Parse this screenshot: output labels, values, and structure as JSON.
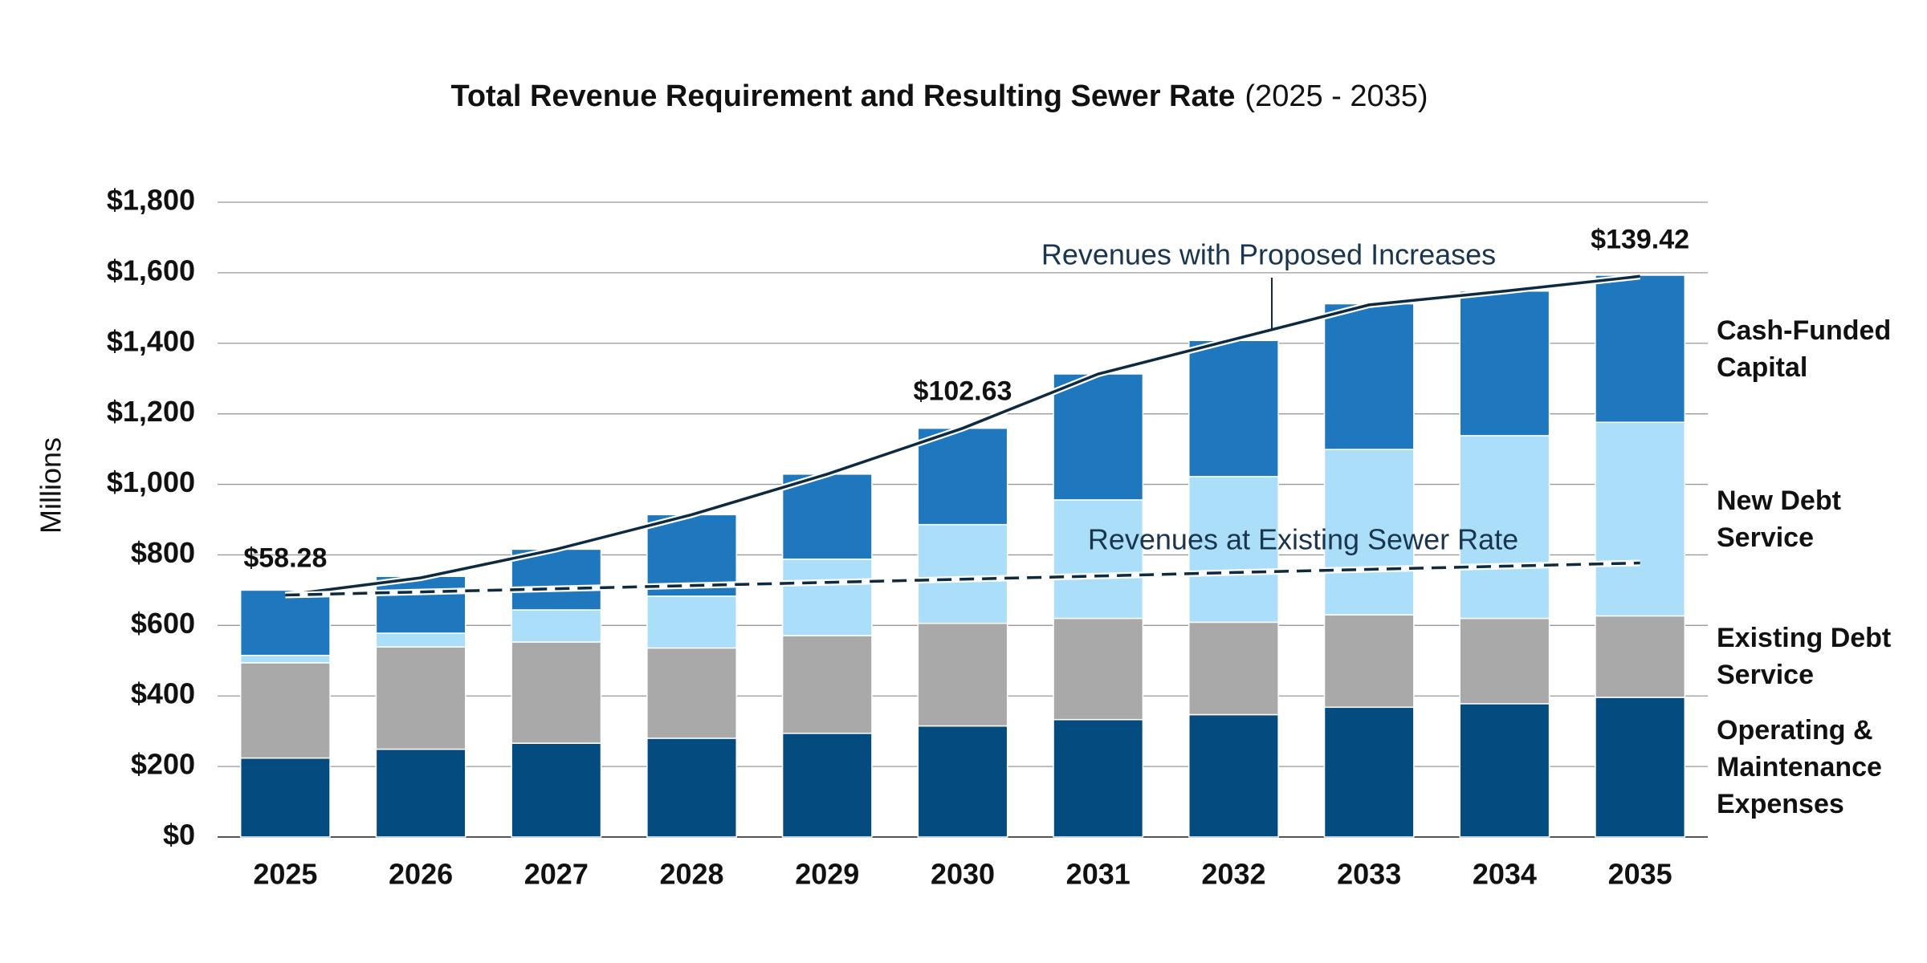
{
  "chart_data": {
    "type": "bar",
    "stacked": true,
    "title": "Total Revenue Requirement and Resulting Sewer Rate",
    "subtitle": "(2025 - 2035)",
    "y_label": "Millions",
    "categories": [
      "2025",
      "2026",
      "2027",
      "2028",
      "2029",
      "2030",
      "2031",
      "2032",
      "2033",
      "2034",
      "2035"
    ],
    "series": [
      {
        "name": "Operating & Maintenance Expenses",
        "color": "#044c80",
        "values": [
          224,
          249,
          266,
          280,
          294,
          315,
          333,
          347,
          368,
          378,
          396
        ]
      },
      {
        "name": "Existing Debt Service",
        "color": "#a9a9a9",
        "values": [
          270,
          290,
          287,
          256,
          277,
          291,
          287,
          262,
          262,
          242,
          231
        ]
      },
      {
        "name": "New Debt Service",
        "color": "#abdff9",
        "values": [
          21,
          39,
          91,
          147,
          217,
          280,
          336,
          413,
          469,
          518,
          549
        ]
      },
      {
        "name": "Cash-Funded Capital",
        "color": "#1f77bd",
        "values": [
          185,
          161,
          172,
          231,
          241,
          273,
          357,
          386,
          413,
          410,
          417
        ]
      }
    ],
    "lines": [
      {
        "name": "Revenues with Proposed Increases",
        "color": "#0d2a40",
        "dashed": false,
        "values": [
          686,
          735,
          816,
          914,
          1029,
          1159,
          1313,
          1411,
          1509,
          1548,
          1590
        ]
      },
      {
        "name": "Revenues at Existing Sewer Rate",
        "color": "#0d2a40",
        "dashed": true,
        "values": [
          686,
          695,
          704,
          713,
          722,
          731,
          740,
          750,
          759,
          768,
          777
        ]
      }
    ],
    "rate_labels": [
      {
        "category": "2025",
        "text": "$58.28"
      },
      {
        "category": "2030",
        "text": "$102.63"
      },
      {
        "category": "2035",
        "text": "$139.42"
      }
    ],
    "ylim": [
      0,
      1800
    ],
    "yticks": [
      {
        "value": 0,
        "label": "$0"
      },
      {
        "value": 200,
        "label": "$200"
      },
      {
        "value": 400,
        "label": "$400"
      },
      {
        "value": 600,
        "label": "$600"
      },
      {
        "value": 800,
        "label": "$800"
      },
      {
        "value": 1000,
        "label": "$1,000"
      },
      {
        "value": 1200,
        "label": "$1,200"
      },
      {
        "value": 1400,
        "label": "$1,400"
      },
      {
        "value": 1600,
        "label": "$1,600"
      },
      {
        "value": 1800,
        "label": "$1,800"
      }
    ],
    "grid": true
  }
}
